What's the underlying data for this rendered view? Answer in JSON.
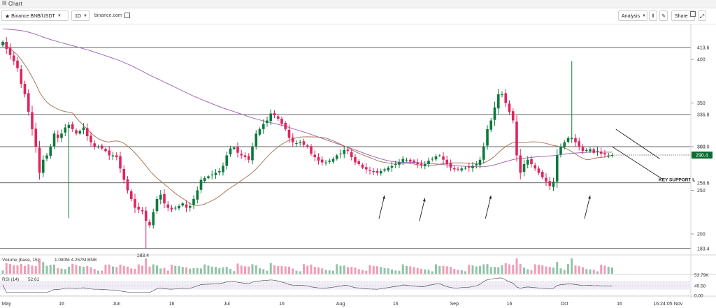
{
  "window": {
    "title": "Chart"
  },
  "toolbar": {
    "symbol": "Binance BNB/USDT",
    "interval": "1D",
    "source": "binance.com",
    "analysis": "Analysis",
    "share": "Share"
  },
  "colors": {
    "up": "#0b7a3b",
    "down": "#e0245e",
    "ma_slow": "#a06bb5",
    "ma_fast": "#a87b5e",
    "price_tag": "#0b6b33"
  },
  "chart_data": {
    "type": "candlestick",
    "price_axis": {
      "min": 176,
      "max": 440,
      "ticks": [
        200,
        250,
        300,
        350,
        400
      ]
    },
    "levels": [
      {
        "price": 413.6,
        "label": "413.6"
      },
      {
        "price": 336.8,
        "label": "336.8"
      },
      {
        "price": 300.0,
        "label": "300.0"
      },
      {
        "price": 258.6,
        "label": "258.6"
      },
      {
        "price": 183.4,
        "label": "183.4"
      }
    ],
    "last_price": {
      "value": 290.4,
      "label": "290.4"
    },
    "low_label": {
      "value": 183.4,
      "text": "183.4",
      "day": 38
    },
    "support_label": "KEY SUPPORT L",
    "x_ticks": [
      {
        "day": 1,
        "label": "May"
      },
      {
        "day": 16,
        "label": "16"
      },
      {
        "day": 31,
        "label": "Jun"
      },
      {
        "day": 46,
        "label": "16"
      },
      {
        "day": 61,
        "label": "Jul"
      },
      {
        "day": 76,
        "label": "16"
      },
      {
        "day": 92,
        "label": "Aug"
      },
      {
        "day": 107,
        "label": "16"
      },
      {
        "day": 123,
        "label": "Sep"
      },
      {
        "day": 138,
        "label": "16"
      },
      {
        "day": 153,
        "label": "Oct"
      },
      {
        "day": 168,
        "label": "16"
      },
      {
        "day": 184,
        "label": "Nov"
      },
      {
        "day": 199,
        "label": "16"
      }
    ],
    "time_label": "16:24:05",
    "closes": [
      420,
      412,
      405,
      398,
      390,
      372,
      360,
      340,
      320,
      300,
      270,
      285,
      290,
      300,
      315,
      310,
      315,
      322,
      325,
      320,
      315,
      318,
      322,
      312,
      305,
      300,
      300,
      298,
      295,
      290,
      290,
      288,
      275,
      262,
      250,
      240,
      230,
      228,
      226,
      215,
      210,
      225,
      240,
      245,
      235,
      230,
      228,
      230,
      232,
      235,
      230,
      232,
      240,
      250,
      262,
      264,
      266,
      268,
      270,
      272,
      278,
      290,
      298,
      299,
      293,
      290,
      288,
      285,
      300,
      315,
      320,
      326,
      330,
      338,
      336,
      332,
      326,
      320,
      310,
      305,
      304,
      305,
      302,
      300,
      292,
      288,
      284,
      282,
      282,
      284,
      286,
      290,
      292,
      296,
      295,
      288,
      282,
      280,
      276,
      274,
      272,
      271,
      270,
      272,
      274,
      276,
      278,
      280,
      282,
      286,
      285,
      283,
      282,
      280,
      279,
      280,
      284,
      286,
      289,
      290,
      285,
      280,
      276,
      274,
      274,
      275,
      276,
      276,
      278,
      280,
      285,
      300,
      320,
      330,
      345,
      360,
      360,
      350,
      340,
      330,
      290,
      270,
      280,
      285,
      280,
      275,
      270,
      265,
      260,
      255,
      260,
      290,
      300,
      305,
      310,
      310,
      305,
      300,
      295,
      296,
      297,
      293,
      295,
      292,
      291,
      290,
      290.4
    ],
    "volume_label": "Volume (base, 15)",
    "volume_values": "1.080M  4.257M BNB",
    "volume_axis_label": "53.79K",
    "rsi_label": "RSI (14)",
    "rsi_value": "52.61",
    "rsi_levels": [
      {
        "value": 70,
        "label": ""
      },
      {
        "value": 49.58,
        "label": "49.58"
      },
      {
        "value": 0,
        "label": "0.00"
      }
    ]
  }
}
